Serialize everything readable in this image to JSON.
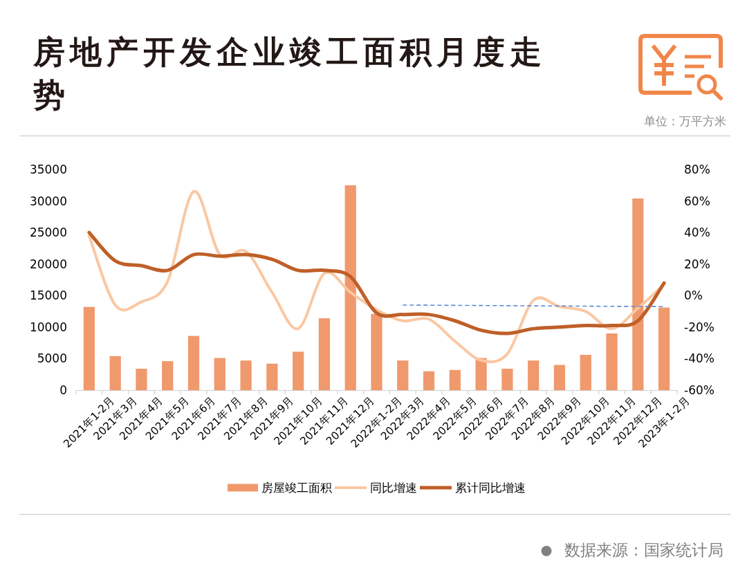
{
  "chart_data": {
    "type": "bar",
    "title": "房地产开发企业竣工面积月度走势",
    "annotations": [
      "单位：万平方米",
      "数据来源：国家统计局"
    ],
    "categories": [
      "2021年1-2月",
      "2021年3月",
      "2021年4月",
      "2021年5月",
      "2021年6月",
      "2021年7月",
      "2021年8月",
      "2021年9月",
      "2021年10月",
      "2021年11月",
      "2021年12月",
      "2022年1-2月",
      "2022年3月",
      "2022年4月",
      "2022年5月",
      "2022年6月",
      "2022年7月",
      "2022年8月",
      "2022年9月",
      "2022年10月",
      "2022年11月",
      "2022年12月",
      "2023年1-2月"
    ],
    "series": [
      {
        "name": "房屋竣工面积",
        "color": "#f0996d",
        "values": [
          13200,
          5400,
          3400,
          4600,
          8600,
          5100,
          4700,
          4200,
          6100,
          11400,
          32500,
          12100,
          4700,
          3000,
          3200,
          5100,
          3400,
          4700,
          4000,
          5600,
          9000,
          30400,
          13100
        ]
      },
      {
        "name": "同比增速",
        "type": "line",
        "axis": "y2",
        "color": "#f9c8a3",
        "values": [
          38,
          -6,
          -4,
          9,
          66,
          26,
          28,
          2,
          -21,
          14,
          2,
          -9,
          -16,
          -15,
          -29,
          -41,
          -37,
          -3,
          -7,
          -10,
          -21,
          -8,
          7
        ]
      },
      {
        "name": "累计同比增速",
        "type": "line",
        "axis": "y2",
        "color": "#bf5f28",
        "values": [
          40,
          22,
          19,
          16,
          26,
          25,
          26,
          23,
          16,
          16,
          12,
          -11,
          -12,
          -12,
          -16,
          -22,
          -24,
          -21,
          -20,
          -19,
          -19,
          -16,
          8
        ]
      },
      {
        "type": "line",
        "axis": "y2",
        "color": "#5b8bd6",
        "line_style": "dashed",
        "x": [
          "2022年3月",
          "2023年1-2月"
        ],
        "values": [
          -6,
          -7
        ]
      }
    ],
    "ylim": [
      0,
      35000
    ],
    "yticks": [
      0,
      5000,
      10000,
      15000,
      20000,
      25000,
      30000,
      35000
    ],
    "y2lim": [
      -60,
      80
    ],
    "y2ticks": [
      {
        "value": -60,
        "label": "-60%"
      },
      {
        "value": -40,
        "label": "-40%"
      },
      {
        "value": -20,
        "label": "-20%"
      },
      {
        "value": 0,
        "label": "0%"
      },
      {
        "value": 20,
        "label": "20%"
      },
      {
        "value": 40,
        "label": "40%"
      },
      {
        "value": 60,
        "label": "60%"
      },
      {
        "value": 80,
        "label": "80%"
      }
    ],
    "legend": "bottom"
  }
}
